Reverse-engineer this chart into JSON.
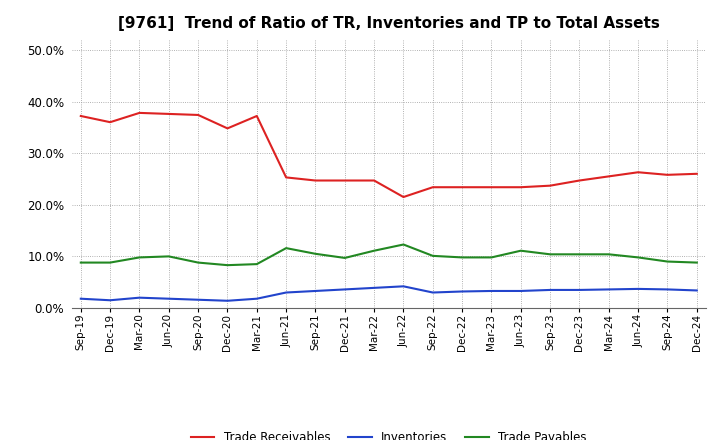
{
  "title": "[9761]  Trend of Ratio of TR, Inventories and TP to Total Assets",
  "x_labels": [
    "Sep-19",
    "Dec-19",
    "Mar-20",
    "Jun-20",
    "Sep-20",
    "Dec-20",
    "Mar-21",
    "Jun-21",
    "Sep-21",
    "Dec-21",
    "Mar-22",
    "Jun-22",
    "Sep-22",
    "Dec-22",
    "Mar-23",
    "Jun-23",
    "Sep-23",
    "Dec-23",
    "Mar-24",
    "Jun-24",
    "Sep-24",
    "Dec-24"
  ],
  "trade_receivables": [
    0.372,
    0.36,
    0.378,
    0.376,
    0.374,
    0.348,
    0.372,
    0.253,
    0.247,
    0.247,
    0.247,
    0.215,
    0.234,
    0.234,
    0.234,
    0.234,
    0.237,
    0.247,
    0.255,
    0.263,
    0.258,
    0.26
  ],
  "inventories": [
    0.018,
    0.015,
    0.02,
    0.018,
    0.016,
    0.014,
    0.018,
    0.03,
    0.033,
    0.036,
    0.039,
    0.042,
    0.03,
    0.032,
    0.033,
    0.033,
    0.035,
    0.035,
    0.036,
    0.037,
    0.036,
    0.034
  ],
  "trade_payables": [
    0.088,
    0.088,
    0.098,
    0.1,
    0.088,
    0.083,
    0.085,
    0.116,
    0.105,
    0.097,
    0.111,
    0.123,
    0.101,
    0.098,
    0.098,
    0.111,
    0.104,
    0.104,
    0.104,
    0.098,
    0.09,
    0.088
  ],
  "colors": {
    "trade_receivables": "#dd2222",
    "inventories": "#2244cc",
    "trade_payables": "#228822"
  },
  "ylim": [
    0.0,
    0.52
  ],
  "yticks": [
    0.0,
    0.1,
    0.2,
    0.3,
    0.4,
    0.5
  ],
  "background_color": "#ffffff",
  "grid_color": "#999999",
  "title_fontsize": 11,
  "legend_labels": [
    "Trade Receivables",
    "Inventories",
    "Trade Payables"
  ]
}
